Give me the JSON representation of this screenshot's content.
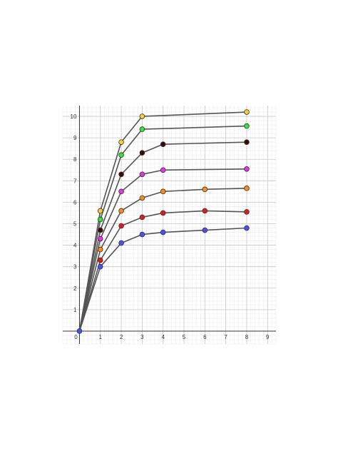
{
  "chart_data": {
    "type": "line",
    "title": "",
    "xlabel": "",
    "ylabel": "",
    "xlim": [
      -0.8,
      9.4
    ],
    "ylim": [
      -0.6,
      10.5
    ],
    "x_ticks": [
      "0",
      "1",
      "2",
      "3",
      "4",
      "5",
      "6",
      "7",
      "8",
      "9"
    ],
    "y_ticks": [
      "1",
      "2",
      "3",
      "4",
      "5",
      "6",
      "7",
      "8",
      "9",
      "10"
    ],
    "grid": true,
    "legend": "none",
    "line_color": "#555555",
    "series": [
      {
        "color": "#4d4dff",
        "points": [
          [
            0,
            0
          ],
          [
            1,
            3.0
          ],
          [
            2,
            4.1
          ],
          [
            3,
            4.5
          ],
          [
            4,
            4.6
          ],
          [
            6,
            4.7
          ],
          [
            8,
            4.8
          ]
        ]
      },
      {
        "color": "#e31a1c",
        "points": [
          [
            0,
            0
          ],
          [
            1,
            3.3
          ],
          [
            2,
            4.9
          ],
          [
            3,
            5.3
          ],
          [
            4,
            5.5
          ],
          [
            6,
            5.6
          ],
          [
            8,
            5.55
          ]
        ]
      },
      {
        "color": "#ff8c1a",
        "points": [
          [
            0,
            0
          ],
          [
            1,
            3.8
          ],
          [
            2,
            5.6
          ],
          [
            3,
            6.2
          ],
          [
            4,
            6.5
          ],
          [
            6,
            6.6
          ],
          [
            8,
            6.65
          ]
        ]
      },
      {
        "color": "#e633e6",
        "points": [
          [
            0,
            0
          ],
          [
            1,
            4.3
          ],
          [
            2,
            6.5
          ],
          [
            3,
            7.3
          ],
          [
            4,
            7.5
          ],
          [
            8,
            7.55
          ]
        ]
      },
      {
        "color": "#3d0a0a",
        "points": [
          [
            0,
            0
          ],
          [
            1,
            4.7
          ],
          [
            2,
            7.3
          ],
          [
            3,
            8.3
          ],
          [
            4,
            8.7
          ],
          [
            8,
            8.8
          ]
        ]
      },
      {
        "color": "#33e633",
        "points": [
          [
            0,
            0
          ],
          [
            1,
            5.2
          ],
          [
            2,
            8.2
          ],
          [
            3,
            9.4
          ],
          [
            8,
            9.55
          ]
        ]
      },
      {
        "color": "#ffcc33",
        "points": [
          [
            0,
            0
          ],
          [
            1,
            5.6
          ],
          [
            2,
            8.8
          ],
          [
            3,
            10.0
          ],
          [
            8,
            10.2
          ]
        ]
      }
    ]
  }
}
